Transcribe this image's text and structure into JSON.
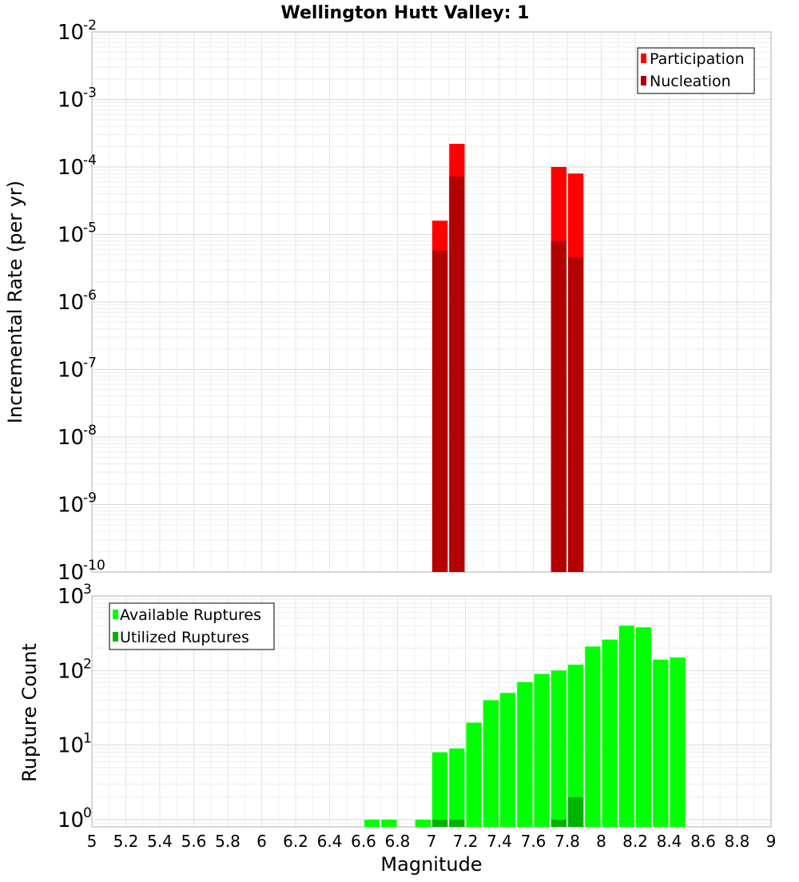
{
  "title": "Wellington Hutt Valley: 1",
  "chart_data": [
    {
      "type": "bar",
      "scale": "log",
      "title": "Wellington Hutt Valley: 1",
      "xlabel": "Magnitude",
      "ylabel": "Incremental Rate (per yr)",
      "xlim": [
        5,
        9
      ],
      "ylim": [
        1e-10,
        0.01
      ],
      "y_tick_exponents": [
        -10,
        -9,
        -8,
        -7,
        -6,
        -5,
        -4,
        -3,
        -2
      ],
      "legend": [
        "Participation",
        "Nucleation"
      ],
      "legend_position": "top-right",
      "colors": {
        "Participation": "#ff0000",
        "Nucleation": "#b30000"
      },
      "series": [
        {
          "name": "Participation",
          "x": [
            7.05,
            7.15,
            7.75,
            7.85
          ],
          "values": [
            1.6e-05,
            0.00022,
            0.0001,
            8e-05
          ]
        },
        {
          "name": "Nucleation",
          "x": [
            7.05,
            7.15,
            7.75,
            7.85
          ],
          "values": [
            5.8e-06,
            7.2e-05,
            8e-06,
            4.6e-06
          ]
        }
      ]
    },
    {
      "type": "bar",
      "scale": "log",
      "xlabel": "Magnitude",
      "ylabel": "Rupture Count",
      "xlim": [
        5,
        9
      ],
      "ylim": [
        0.8,
        1000
      ],
      "y_tick_exponents": [
        0,
        1,
        2,
        3
      ],
      "x_ticks": [
        "5",
        "5.2",
        "5.4",
        "5.6",
        "5.8",
        "6",
        "6.2",
        "6.4",
        "6.6",
        "6.8",
        "7",
        "7.2",
        "7.4",
        "7.6",
        "7.8",
        "8",
        "8.2",
        "8.4",
        "8.6",
        "8.8",
        "9"
      ],
      "legend": [
        "Available Ruptures",
        "Utilized Ruptures"
      ],
      "legend_position": "top-left",
      "colors": {
        "Available Ruptures": "#00ff00",
        "Utilized Ruptures": "#00b300"
      },
      "series": [
        {
          "name": "Available Ruptures",
          "x": [
            6.65,
            6.75,
            6.95,
            7.05,
            7.15,
            7.25,
            7.35,
            7.45,
            7.55,
            7.65,
            7.75,
            7.85,
            7.95,
            8.05,
            8.15,
            8.25,
            8.35,
            8.45
          ],
          "values": [
            1,
            1,
            1,
            8,
            9,
            20,
            40,
            50,
            70,
            90,
            100,
            120,
            210,
            260,
            400,
            380,
            140,
            150
          ]
        },
        {
          "name": "Utilized Ruptures",
          "x": [
            7.05,
            7.15,
            7.75,
            7.85
          ],
          "values": [
            1,
            1,
            1,
            2
          ]
        }
      ]
    }
  ]
}
